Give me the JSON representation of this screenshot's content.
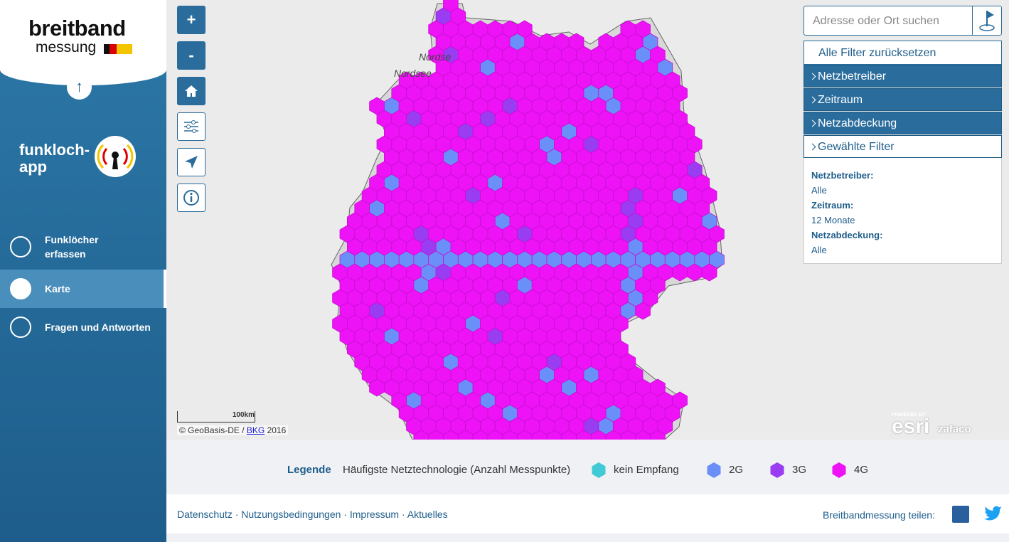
{
  "sidebar": {
    "logo_top": "breitband",
    "logo_bottom": "messung",
    "app_name": [
      "funkloch-",
      "app"
    ],
    "nav": [
      {
        "label": "Funklöcher erfassen"
      },
      {
        "label": "Karte"
      },
      {
        "label": "Fragen und Antworten"
      }
    ]
  },
  "map": {
    "sea_labels": [
      "Nordse",
      "Nordsee"
    ],
    "zoom_in": "+",
    "zoom_out": "-",
    "scale": "100km",
    "attribution": [
      "© GeoBasis-DE /",
      "BKG",
      "2016"
    ],
    "powered_by": "POWERED BY",
    "esri": "esri",
    "zafaco": "zafaco"
  },
  "search": {
    "placeholder": "Adresse oder Ort suchen"
  },
  "filters": {
    "reset": "Alle Filter zurücksetzen",
    "sections": [
      "Netzbetreiber",
      "Zeitraum",
      "Netzabdeckung",
      "Gewählte Filter"
    ],
    "summary": [
      {
        "label": "Netzbetreiber:",
        "value": "Alle"
      },
      {
        "label": "Zeitraum:",
        "value": "12 Monate"
      },
      {
        "label": "Netzabdeckung:",
        "value": "Alle"
      }
    ]
  },
  "legend": {
    "title": "Legende",
    "subtitle": "Häufigste Netztechnologie (Anzahl Messpunkte)",
    "items": [
      {
        "label": "kein Empfang",
        "color": "#3fcad6"
      },
      {
        "label": "2G",
        "color": "#6b8ff8"
      },
      {
        "label": "3G",
        "color": "#9a3cf2"
      },
      {
        "label": "4G",
        "color": "#ee12f6"
      }
    ]
  },
  "footer": {
    "links": [
      "Datenschutz",
      "Nutzungsbedingungen",
      "Impressum",
      "Aktuelles"
    ],
    "link_separator": "·",
    "share": "Breitbandmessung teilen:"
  }
}
